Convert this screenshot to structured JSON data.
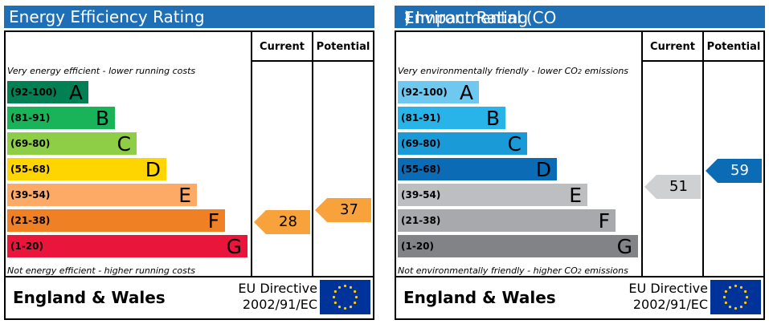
{
  "energy": {
    "title": "Energy Efficiency Rating",
    "col_current": "Current",
    "col_potential": "Potential",
    "top_note": "Very energy efficient - lower running costs",
    "bottom_note": "Not energy efficient - higher running costs",
    "bands": [
      {
        "range": "(92-100)",
        "letter": "A",
        "color": "#008054",
        "text_color": "#000000"
      },
      {
        "range": "(81-91)",
        "letter": "B",
        "color": "#19b459",
        "text_color": "#000000"
      },
      {
        "range": "(69-80)",
        "letter": "C",
        "color": "#8dce46",
        "text_color": "#000000"
      },
      {
        "range": "(55-68)",
        "letter": "D",
        "color": "#ffd500",
        "text_color": "#000000"
      },
      {
        "range": "(39-54)",
        "letter": "E",
        "color": "#fcaa65",
        "text_color": "#000000"
      },
      {
        "range": "(21-38)",
        "letter": "F",
        "color": "#ef8023",
        "text_color": "#000000"
      },
      {
        "range": "(1-20)",
        "letter": "G",
        "color": "#e9153b",
        "text_color": "#000000"
      }
    ],
    "current": {
      "value": "28",
      "color": "#f7a23b"
    },
    "potential": {
      "value": "37",
      "color": "#f7a23b"
    },
    "footer_name": "England & Wales",
    "directive_line1": "EU Directive",
    "directive_line2": "2002/91/EC"
  },
  "environmental": {
    "title_prefix": "Environmental (CO",
    "title_sub": "2",
    "title_suffix": ") Impact Rating",
    "col_current": "Current",
    "col_potential": "Potential",
    "top_note_prefix": "Very environmentally friendly - lower CO",
    "top_note_sub": "2",
    "top_note_suffix": " emissions",
    "bottom_note_prefix": "Not environmentally friendly - higher CO",
    "bottom_note_sub": "2",
    "bottom_note_suffix": " emissions",
    "bands": [
      {
        "range": "(92-100)",
        "letter": "A",
        "color": "#6fc8f0",
        "text_color": "#000000"
      },
      {
        "range": "(81-91)",
        "letter": "B",
        "color": "#28b4e8",
        "text_color": "#000000"
      },
      {
        "range": "(69-80)",
        "letter": "C",
        "color": "#1a9ad6",
        "text_color": "#000000"
      },
      {
        "range": "(55-68)",
        "letter": "D",
        "color": "#0b6cb5",
        "text_color": "#000000"
      },
      {
        "range": "(39-54)",
        "letter": "E",
        "color": "#bcbec0",
        "text_color": "#000000"
      },
      {
        "range": "(21-38)",
        "letter": "F",
        "color": "#a7a9ac",
        "text_color": "#000000"
      },
      {
        "range": "(1-20)",
        "letter": "G",
        "color": "#818386",
        "text_color": "#000000"
      }
    ],
    "current": {
      "value": "51",
      "color": "#cfd0d2"
    },
    "potential": {
      "value": "59",
      "color": "#0b6cb5"
    },
    "footer_name": "England & Wales",
    "directive_line1": "EU Directive",
    "directive_line2": "2002/91/EC"
  }
}
